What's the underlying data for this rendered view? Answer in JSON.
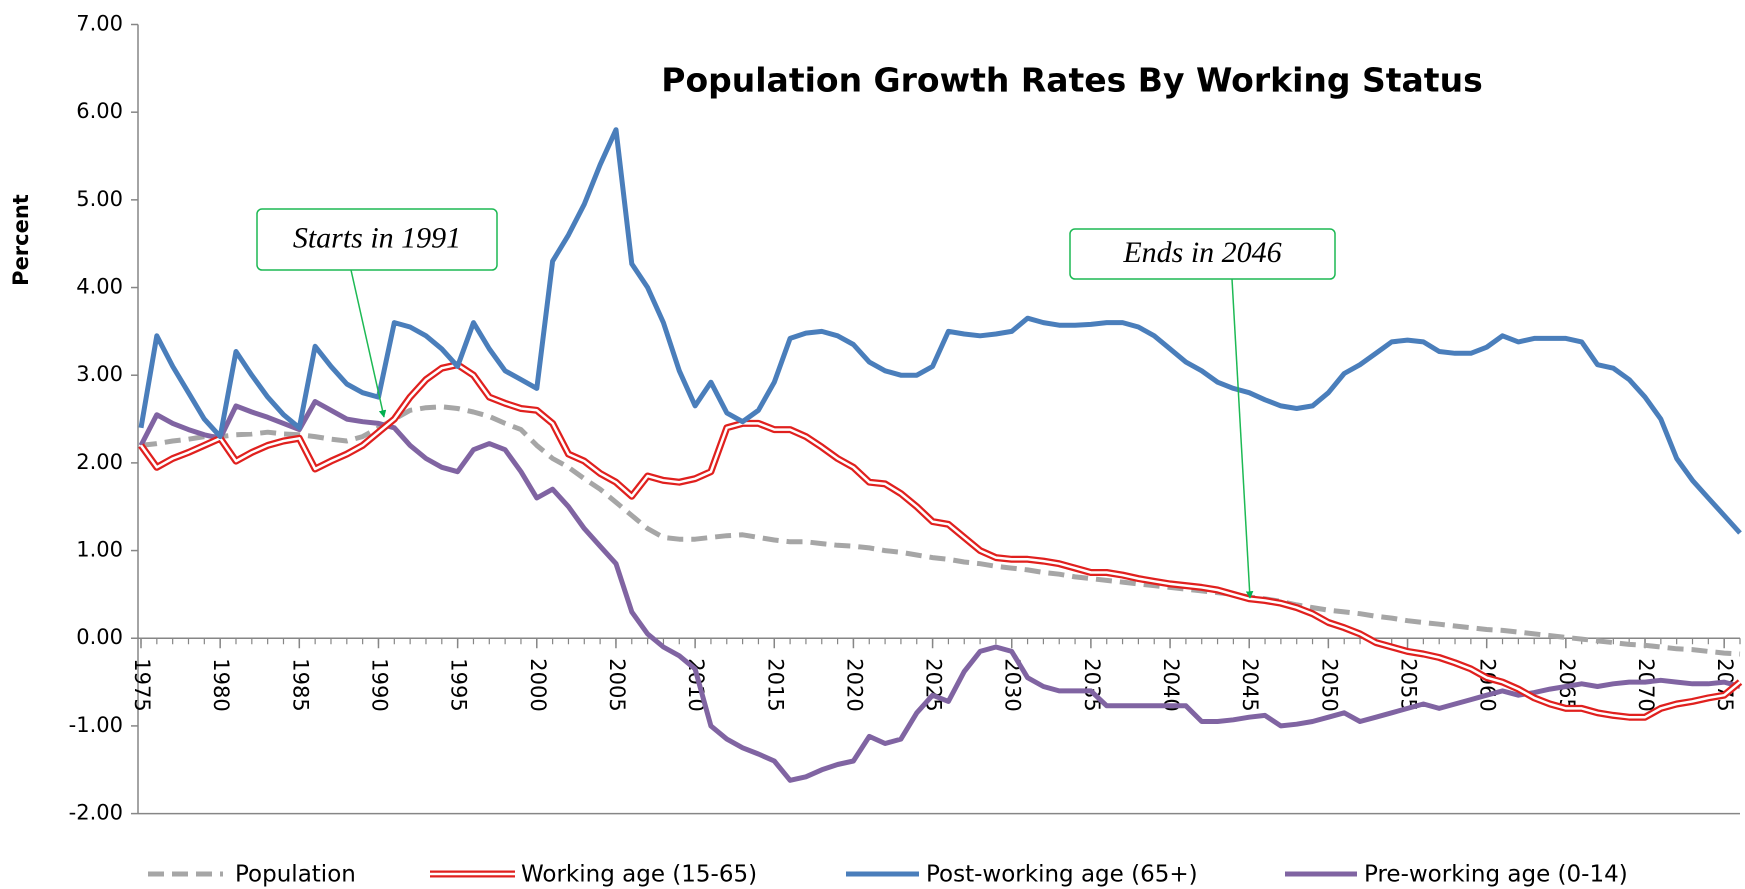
{
  "chart_data": {
    "type": "line",
    "title": "Population Growth Rates By Working Status",
    "y_label": "Percent",
    "annotations": [
      {
        "text": "Starts in 1991"
      },
      {
        "text": "Ends in 2046"
      }
    ],
    "xlim": [
      1975,
      2076
    ],
    "xticks": [
      1975,
      1980,
      1985,
      1990,
      1995,
      2000,
      2005,
      2010,
      2015,
      2020,
      2025,
      2030,
      2035,
      2040,
      2045,
      2050,
      2055,
      2060,
      2065,
      2070,
      2075
    ],
    "ylim": [
      -2,
      7
    ],
    "yticks": [
      {
        "value": -2,
        "label": "-2.00"
      },
      {
        "value": -1,
        "label": "-1.00"
      },
      {
        "value": 0,
        "label": "0.00"
      },
      {
        "value": 1,
        "label": "1.00"
      },
      {
        "value": 2,
        "label": "2.00"
      },
      {
        "value": 3,
        "label": "3.00"
      },
      {
        "value": 4,
        "label": "4.00"
      },
      {
        "value": 5,
        "label": "5.00"
      },
      {
        "value": 6,
        "label": "6.00"
      },
      {
        "value": 7,
        "label": "7.00"
      }
    ],
    "grid": false,
    "x": [
      1975,
      1976,
      1977,
      1978,
      1979,
      1980,
      1981,
      1982,
      1983,
      1984,
      1985,
      1986,
      1987,
      1988,
      1989,
      1990,
      1991,
      1992,
      1993,
      1994,
      1995,
      1996,
      1997,
      1998,
      1999,
      2000,
      2001,
      2002,
      2003,
      2004,
      2005,
      2006,
      2007,
      2008,
      2009,
      2010,
      2011,
      2012,
      2013,
      2014,
      2015,
      2016,
      2017,
      2018,
      2019,
      2020,
      2021,
      2022,
      2023,
      2024,
      2025,
      2026,
      2027,
      2028,
      2029,
      2030,
      2031,
      2032,
      2033,
      2034,
      2035,
      2036,
      2037,
      2038,
      2039,
      2040,
      2041,
      2042,
      2043,
      2044,
      2045,
      2046,
      2047,
      2048,
      2049,
      2050,
      2051,
      2052,
      2053,
      2054,
      2055,
      2056,
      2057,
      2058,
      2059,
      2060,
      2061,
      2062,
      2063,
      2064,
      2065,
      2066,
      2067,
      2068,
      2069,
      2070,
      2071,
      2072,
      2073,
      2074,
      2075,
      2076
    ],
    "series": [
      {
        "name": "Population",
        "color": "#a6a6a6",
        "style": "dashed",
        "values": [
          2.2,
          2.22,
          2.25,
          2.27,
          2.3,
          2.3,
          2.32,
          2.33,
          2.35,
          2.33,
          2.32,
          2.3,
          2.27,
          2.25,
          2.3,
          2.4,
          2.5,
          2.6,
          2.63,
          2.64,
          2.62,
          2.58,
          2.53,
          2.45,
          2.38,
          2.2,
          2.05,
          1.95,
          1.82,
          1.7,
          1.55,
          1.4,
          1.25,
          1.15,
          1.13,
          1.13,
          1.15,
          1.17,
          1.18,
          1.15,
          1.12,
          1.1,
          1.1,
          1.08,
          1.06,
          1.05,
          1.03,
          1.0,
          0.98,
          0.95,
          0.92,
          0.9,
          0.87,
          0.85,
          0.82,
          0.8,
          0.78,
          0.75,
          0.73,
          0.7,
          0.68,
          0.66,
          0.64,
          0.62,
          0.6,
          0.58,
          0.56,
          0.54,
          0.52,
          0.5,
          0.47,
          0.45,
          0.42,
          0.38,
          0.35,
          0.32,
          0.3,
          0.28,
          0.25,
          0.23,
          0.2,
          0.18,
          0.16,
          0.14,
          0.12,
          0.1,
          0.09,
          0.07,
          0.05,
          0.03,
          0.01,
          -0.01,
          -0.03,
          -0.05,
          -0.07,
          -0.08,
          -0.1,
          -0.12,
          -0.13,
          -0.15,
          -0.17,
          -0.18
        ]
      },
      {
        "name": "Working age (15-65)",
        "color": "#e0201e",
        "style": "double",
        "values": [
          2.2,
          1.95,
          2.05,
          2.12,
          2.2,
          2.28,
          2.02,
          2.12,
          2.2,
          2.25,
          2.28,
          1.93,
          2.02,
          2.1,
          2.2,
          2.35,
          2.5,
          2.75,
          2.95,
          3.08,
          3.12,
          3.0,
          2.75,
          2.68,
          2.62,
          2.6,
          2.45,
          2.1,
          2.02,
          1.88,
          1.78,
          1.62,
          1.85,
          1.8,
          1.78,
          1.82,
          1.9,
          2.4,
          2.45,
          2.45,
          2.38,
          2.38,
          2.3,
          2.18,
          2.05,
          1.95,
          1.78,
          1.76,
          1.65,
          1.5,
          1.33,
          1.3,
          1.15,
          1.0,
          0.92,
          0.9,
          0.9,
          0.88,
          0.85,
          0.8,
          0.75,
          0.75,
          0.72,
          0.68,
          0.65,
          0.62,
          0.6,
          0.58,
          0.55,
          0.5,
          0.45,
          0.43,
          0.4,
          0.35,
          0.28,
          0.18,
          0.12,
          0.05,
          -0.05,
          -0.1,
          -0.15,
          -0.18,
          -0.22,
          -0.28,
          -0.35,
          -0.45,
          -0.5,
          -0.58,
          -0.68,
          -0.75,
          -0.8,
          -0.8,
          -0.85,
          -0.88,
          -0.9,
          -0.9,
          -0.8,
          -0.75,
          -0.72,
          -0.68,
          -0.65,
          -0.5
        ]
      },
      {
        "name": "Post-working age (65+)",
        "color": "#4a7ebb",
        "style": "solid",
        "values": [
          2.4,
          3.45,
          3.1,
          2.8,
          2.5,
          2.3,
          3.27,
          3.0,
          2.75,
          2.55,
          2.4,
          3.33,
          3.1,
          2.9,
          2.8,
          2.75,
          3.6,
          3.55,
          3.45,
          3.3,
          3.1,
          3.6,
          3.3,
          3.05,
          2.95,
          2.85,
          4.3,
          4.6,
          4.95,
          5.4,
          5.8,
          4.27,
          4.0,
          3.6,
          3.05,
          2.65,
          2.92,
          2.57,
          2.47,
          2.6,
          2.92,
          3.42,
          3.48,
          3.5,
          3.45,
          3.35,
          3.15,
          3.05,
          3.0,
          3.0,
          3.1,
          3.5,
          3.47,
          3.45,
          3.47,
          3.5,
          3.65,
          3.6,
          3.57,
          3.57,
          3.58,
          3.6,
          3.6,
          3.55,
          3.45,
          3.3,
          3.15,
          3.05,
          2.92,
          2.85,
          2.8,
          2.72,
          2.65,
          2.62,
          2.65,
          2.8,
          3.02,
          3.12,
          3.25,
          3.38,
          3.4,
          3.38,
          3.27,
          3.25,
          3.25,
          3.32,
          3.45,
          3.38,
          3.42,
          3.42,
          3.42,
          3.38,
          3.12,
          3.08,
          2.95,
          2.75,
          2.5,
          2.05,
          1.8,
          1.6,
          1.4,
          1.2
        ]
      },
      {
        "name": "Pre-working age (0-14)",
        "color": "#8064a2",
        "style": "solid",
        "values": [
          2.2,
          2.55,
          2.45,
          2.38,
          2.32,
          2.28,
          2.65,
          2.58,
          2.52,
          2.45,
          2.38,
          2.7,
          2.6,
          2.5,
          2.47,
          2.45,
          2.4,
          2.2,
          2.05,
          1.95,
          1.9,
          2.15,
          2.22,
          2.15,
          1.9,
          1.6,
          1.7,
          1.5,
          1.25,
          1.05,
          0.85,
          0.3,
          0.05,
          -0.1,
          -0.2,
          -0.35,
          -1.0,
          -1.15,
          -1.25,
          -1.32,
          -1.4,
          -1.62,
          -1.58,
          -1.5,
          -1.44,
          -1.4,
          -1.12,
          -1.2,
          -1.15,
          -0.85,
          -0.65,
          -0.72,
          -0.38,
          -0.15,
          -0.1,
          -0.15,
          -0.45,
          -0.55,
          -0.6,
          -0.6,
          -0.6,
          -0.77,
          -0.77,
          -0.77,
          -0.77,
          -0.77,
          -0.77,
          -0.95,
          -0.95,
          -0.93,
          -0.9,
          -0.88,
          -1.0,
          -0.98,
          -0.95,
          -0.9,
          -0.85,
          -0.95,
          -0.9,
          -0.85,
          -0.8,
          -0.75,
          -0.8,
          -0.75,
          -0.7,
          -0.65,
          -0.6,
          -0.65,
          -0.62,
          -0.58,
          -0.55,
          -0.52,
          -0.55,
          -0.52,
          -0.5,
          -0.5,
          -0.48,
          -0.5,
          -0.52,
          -0.52,
          -0.5,
          -0.55
        ]
      }
    ]
  }
}
